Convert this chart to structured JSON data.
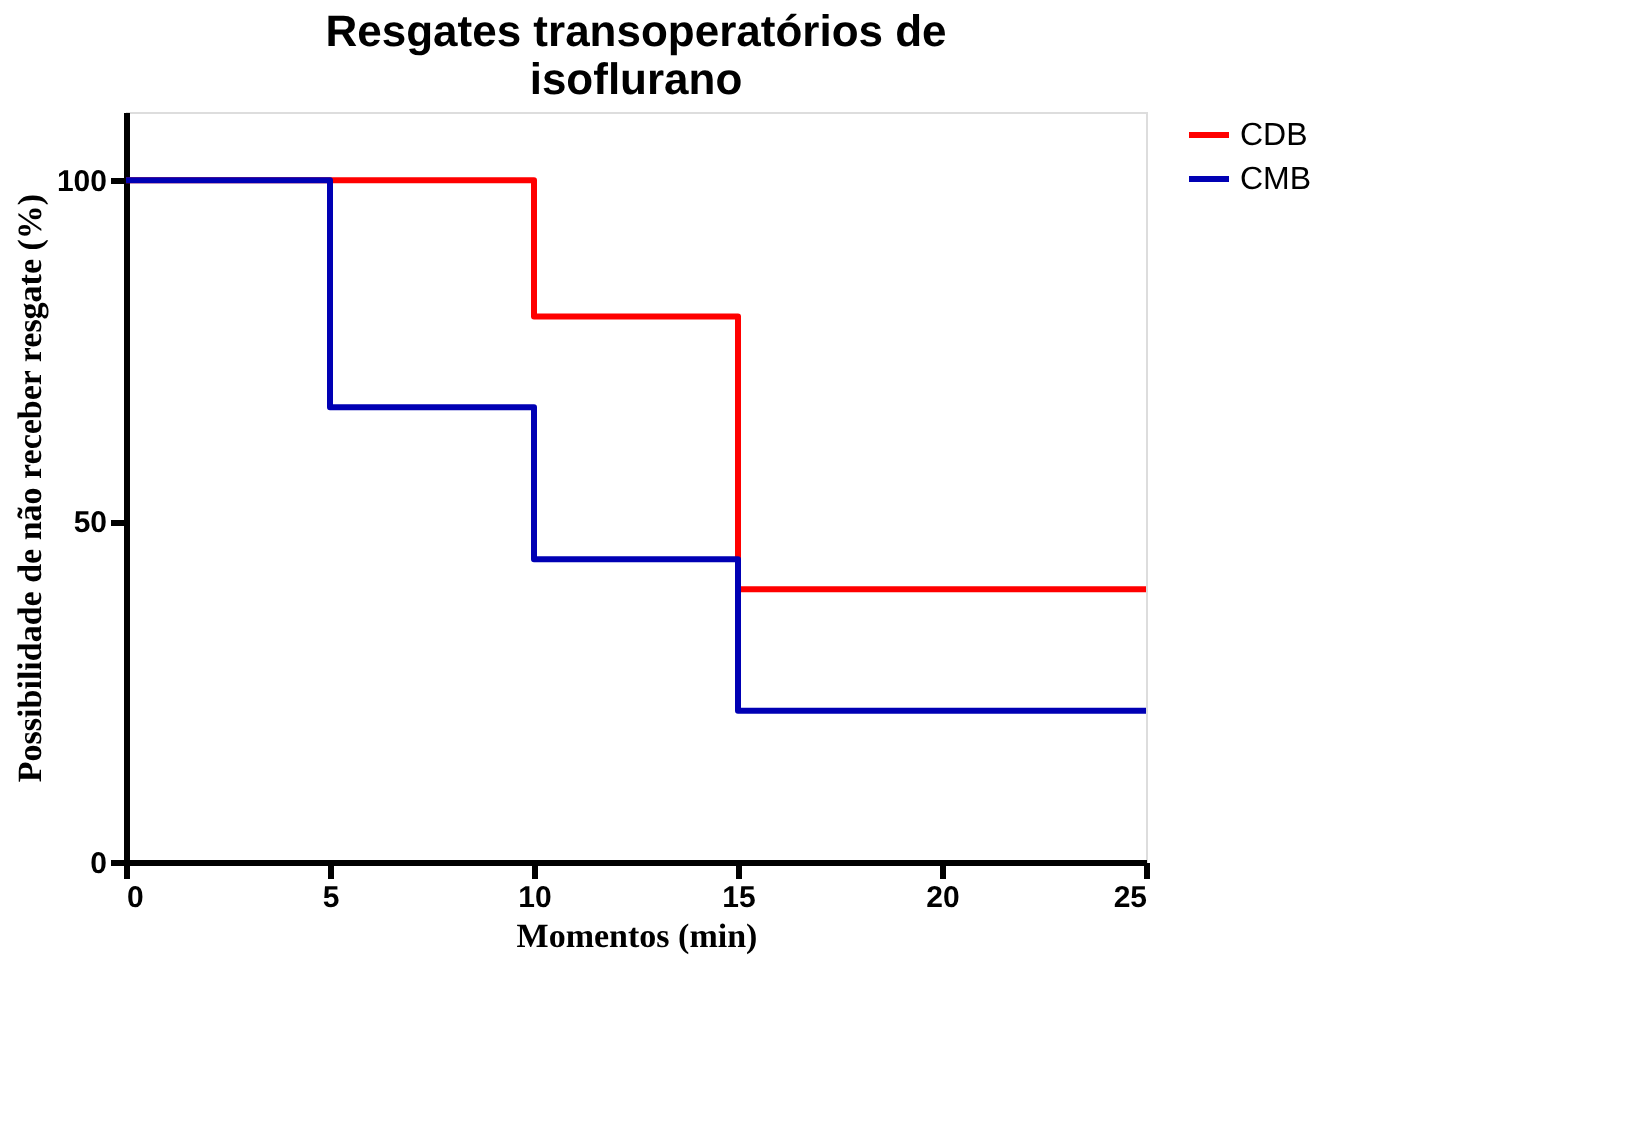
{
  "chart_data": {
    "type": "step",
    "title": "Resgates transoperatórios de isoflurano",
    "xlabel": "Momentos (min)",
    "ylabel": "Possibilidade de não receber resgate (%)",
    "series": [
      {
        "name": "CDB",
        "color": "#ff0000",
        "x": [
          0,
          10,
          15,
          25
        ],
        "values": [
          100,
          80,
          40,
          40
        ]
      },
      {
        "name": "CMB",
        "color": "#0000b4",
        "x": [
          0,
          5,
          10,
          15,
          25
        ],
        "values": [
          100,
          66.7,
          44.4,
          22.2,
          22.2
        ]
      }
    ],
    "xlim": [
      0,
      25
    ],
    "xticks": [
      0,
      5,
      10,
      15,
      20,
      25
    ],
    "ylim": [
      0,
      110
    ],
    "yticks": [
      0,
      50,
      100
    ],
    "grid": false,
    "legend": "top right",
    "line_style": "solid"
  }
}
